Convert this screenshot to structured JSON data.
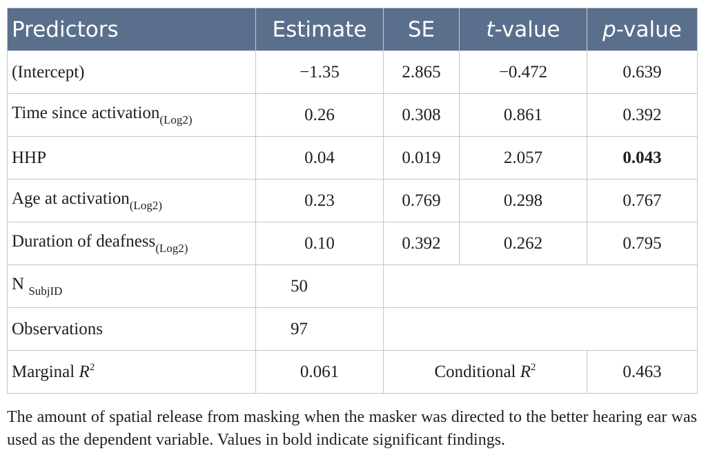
{
  "header": {
    "predictors": "Predictors",
    "estimate": "Estimate",
    "se": "SE",
    "t_italic": "t",
    "t_rest": "-value",
    "p_italic": "p",
    "p_rest": "-value"
  },
  "rows": [
    {
      "label": "(Intercept)",
      "sub": "",
      "estimate": "−1.35",
      "se": "2.865",
      "t": "−0.472",
      "p": "0.639",
      "bold_p": false
    },
    {
      "label": "Time since activation",
      "sub": "(Log2)",
      "estimate": "0.26",
      "se": "0.308",
      "t": "0.861",
      "p": "0.392",
      "bold_p": false
    },
    {
      "label": "HHP",
      "sub": "",
      "estimate": "0.04",
      "se": "0.019",
      "t": "2.057",
      "p": "0.043",
      "bold_p": true
    },
    {
      "label": "Age at activation",
      "sub": "(Log2)",
      "estimate": "0.23",
      "se": "0.769",
      "t": "0.298",
      "p": "0.767",
      "bold_p": false
    },
    {
      "label": "Duration of deafness",
      "sub": "(Log2)",
      "estimate": "0.10",
      "se": "0.392",
      "t": "0.262",
      "p": "0.795",
      "bold_p": false
    }
  ],
  "n_row": {
    "label": "N",
    "sub": "SubjID",
    "value": "50"
  },
  "obs_row": {
    "label": "Observations",
    "value": "97"
  },
  "r2_row": {
    "marginal_label": "Marginal",
    "r": "R",
    "sup": "2",
    "marginal_value": "0.061",
    "conditional_label": "Conditional",
    "conditional_value": "0.463"
  },
  "footnote": "The amount of spatial release from masking when the masker was directed to the better hearing ear was used as the dependent variable. Values in bold indicate significant findings.",
  "colors": {
    "header_bg": "#5a6f8b",
    "border": "#c4c4c4"
  }
}
